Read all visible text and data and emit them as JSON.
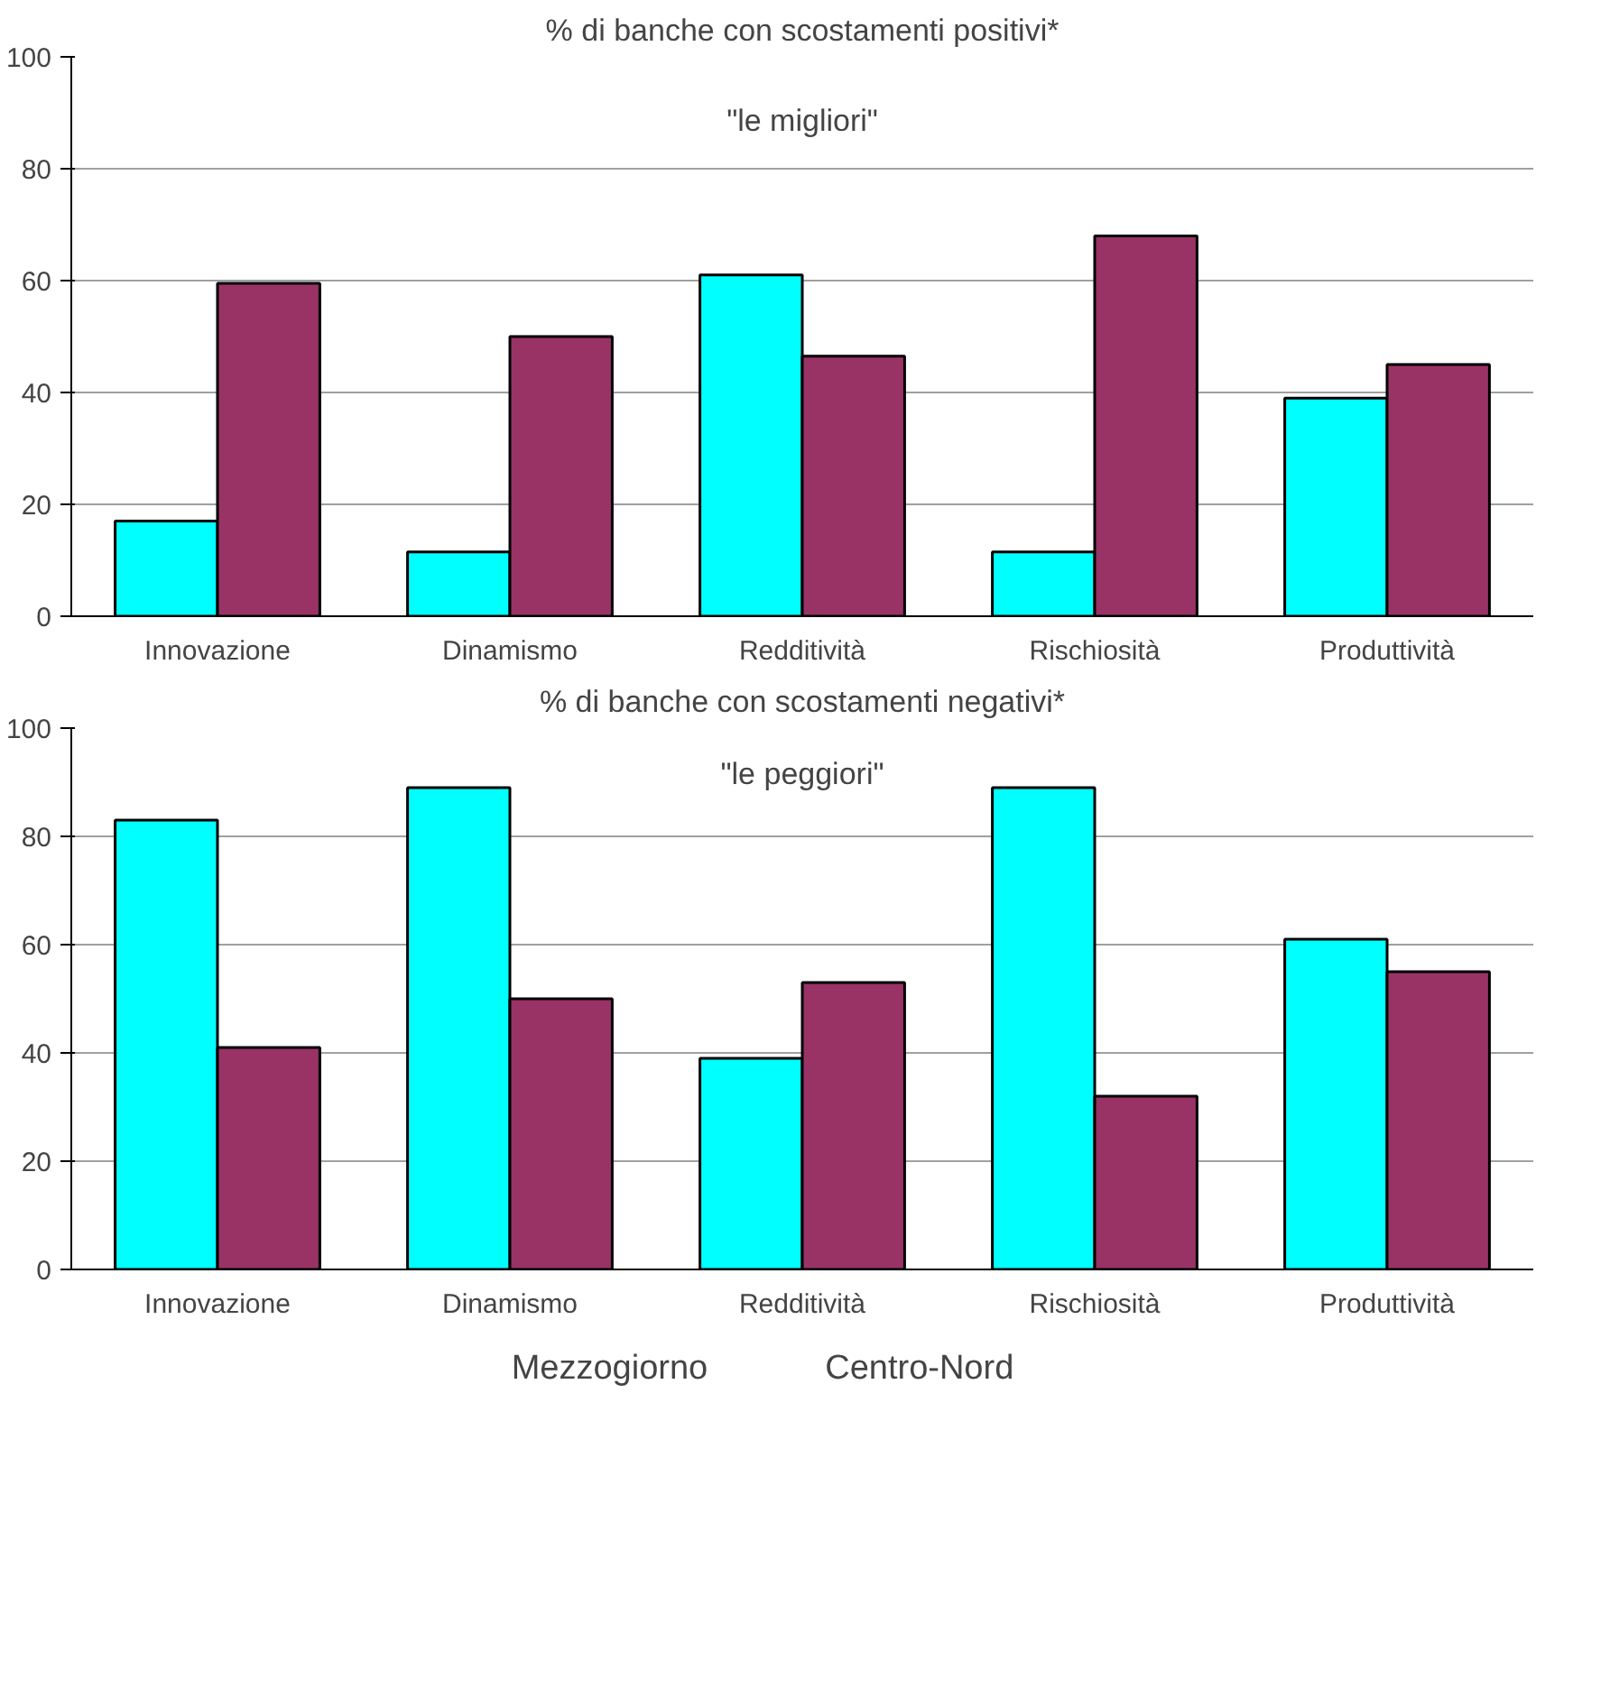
{
  "chart_data": [
    {
      "type": "bar",
      "title": "% di banche con scostamenti positivi*",
      "annotations": [
        "\"le migliori\""
      ],
      "categories": [
        "Innovazione",
        "Dinamismo",
        "Redditività",
        "Rischiosità",
        "Produttività"
      ],
      "series": [
        {
          "color": "#00ffff",
          "values": [
            17,
            11.5,
            61,
            11.5,
            39
          ]
        },
        {
          "color": "#993366",
          "values": [
            59.5,
            50,
            46.5,
            68,
            45
          ]
        }
      ],
      "ylim": [
        0,
        100
      ],
      "yticks": [
        0,
        20,
        40,
        60,
        80,
        100
      ],
      "grid": "y"
    },
    {
      "type": "bar",
      "title": "% di banche con scostamenti negativi*",
      "annotations": [
        "\"le peggiori\""
      ],
      "categories": [
        "Innovazione",
        "Dinamismo",
        "Redditività",
        "Rischiosità",
        "Produttività"
      ],
      "series": [
        {
          "name": "Mezzogiorno",
          "color": "#00ffff",
          "values": [
            83,
            89,
            39,
            89,
            61
          ]
        },
        {
          "name": "Centro-Nord",
          "color": "#993366",
          "values": [
            41,
            50,
            53,
            32,
            55
          ]
        }
      ],
      "ylim": [
        0,
        100
      ],
      "yticks": [
        0,
        20,
        40,
        60,
        80,
        100
      ],
      "grid": "y",
      "legend": "bottom"
    }
  ]
}
